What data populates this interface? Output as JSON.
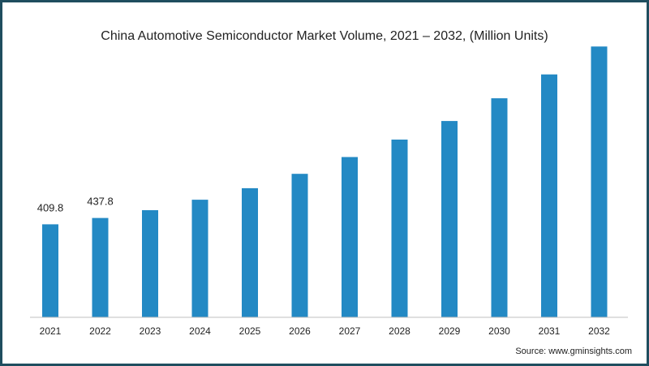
{
  "chart_data": {
    "type": "bar",
    "title": "China Automotive Semiconductor Market Volume, 2021 – 2032, (Million Units)",
    "xlabel": "",
    "ylabel": "",
    "categories": [
      "2021",
      "2022",
      "2023",
      "2024",
      "2025",
      "2026",
      "2027",
      "2028",
      "2029",
      "2030",
      "2031",
      "2032"
    ],
    "values": [
      409.8,
      437.8,
      472,
      518,
      569,
      632,
      706,
      783,
      865,
      965,
      1070,
      1193
    ],
    "data_labels": [
      "409.8",
      "437.8",
      "",
      "",
      "",
      "",
      "",
      "",
      "",
      "",
      "",
      ""
    ],
    "ylim": [
      0,
      1280
    ],
    "bar_color": "#2389c4",
    "grid": false,
    "legend": "none"
  },
  "source": "Source: www.gminsights.com",
  "colors": {
    "border": "#1f4e5f",
    "axis": "#bfbfbf",
    "text": "#222222"
  }
}
